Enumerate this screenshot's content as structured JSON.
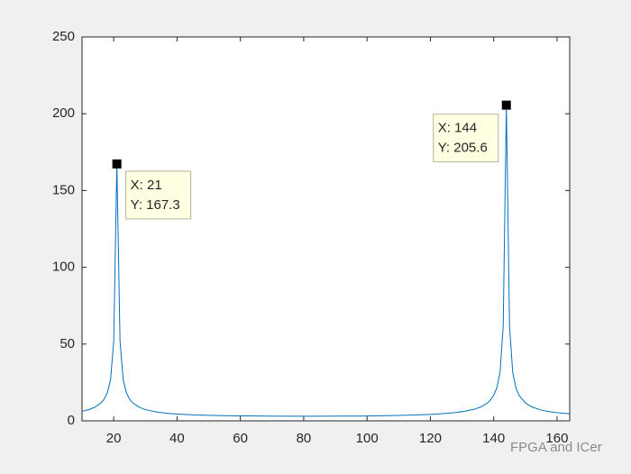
{
  "chart_data": {
    "type": "line",
    "x": [
      10,
      12,
      14,
      16,
      17,
      18,
      19,
      20,
      21,
      22,
      23,
      24,
      25,
      26,
      28,
      30,
      34,
      38,
      42,
      46,
      50,
      56,
      62,
      68,
      74,
      80,
      86,
      92,
      98,
      104,
      110,
      116,
      120,
      124,
      128,
      131,
      134,
      136,
      138,
      139,
      140,
      141,
      142,
      143,
      144,
      145,
      146,
      147,
      148,
      150,
      152,
      155,
      158,
      161,
      164
    ],
    "series": [
      {
        "color": "#0072bd",
        "values": [
          6.2,
          7.2,
          8.8,
          11.7,
          14.2,
          18.4,
          26.7,
          51.7,
          167.3,
          51.7,
          26.7,
          18.4,
          14.2,
          11.7,
          8.9,
          7.3,
          5.6,
          4.7,
          4.2,
          3.8,
          3.6,
          3.3,
          3.2,
          3.1,
          3.0,
          3.0,
          3.0,
          3.1,
          3.1,
          3.3,
          3.5,
          3.9,
          4.2,
          4.7,
          5.4,
          6.3,
          7.6,
          9.1,
          11.6,
          13.6,
          16.6,
          21.6,
          31.6,
          61.6,
          205.6,
          61.6,
          31.6,
          21.6,
          16.6,
          11.6,
          9.1,
          7.0,
          5.9,
          5.1,
          4.6
        ]
      }
    ],
    "xlim": [
      10,
      164
    ],
    "ylim": [
      0,
      250
    ],
    "xticks": [
      20,
      40,
      60,
      80,
      100,
      120,
      140,
      160
    ],
    "yticks": [
      0,
      50,
      100,
      150,
      200,
      250
    ],
    "annotations": [
      {
        "x": 21,
        "y": 167.3,
        "label_x": "X: 21",
        "label_y": "Y: 167.3",
        "side": "right"
      },
      {
        "x": 144,
        "y": 205.6,
        "label_x": "X: 144",
        "label_y": "Y: 205.6",
        "side": "left"
      }
    ],
    "watermark": "FPGA and ICer"
  }
}
